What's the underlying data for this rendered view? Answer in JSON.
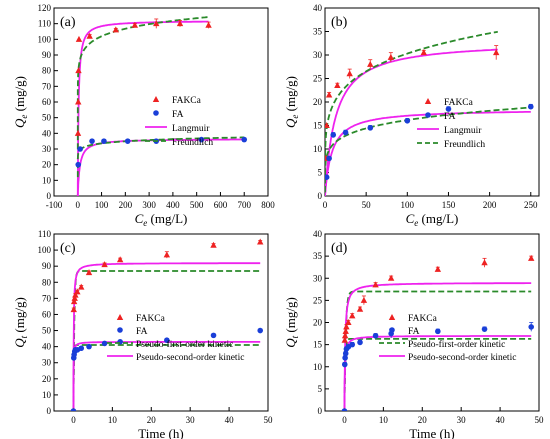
{
  "figure": {
    "legend_labels": {
      "fakca": "FAKCa",
      "fa": "FA",
      "langmuir": "Langmuir",
      "freundlich": "Freundlich",
      "pfo": "Pseudo-first-order kinetic",
      "pso": "Pseudo-second-order kinetic"
    },
    "colors": {
      "fakca": "#ee2222",
      "fa": "#1a3fd8",
      "model_a": "#ee22ee",
      "model_b": "#2a8a2a"
    }
  },
  "chart_data": [
    {
      "panel": "(a)",
      "type": "scatter",
      "xlabel": "Ce (mg/L)",
      "ylabel": "Qe (mg/g)",
      "xlim": [
        -100,
        800
      ],
      "ylim": [
        0,
        120
      ],
      "xticks": [
        -100,
        0,
        100,
        200,
        300,
        400,
        500,
        600,
        700,
        800
      ],
      "yticks": [
        0,
        10,
        20,
        30,
        40,
        50,
        60,
        70,
        80,
        90,
        100,
        110,
        120
      ],
      "legend": "right",
      "series": [
        {
          "name": "FAKCa",
          "marker": "triangle",
          "x": [
            1,
            2,
            3,
            5,
            50,
            160,
            240,
            330,
            430,
            550
          ],
          "y": [
            40,
            60,
            80,
            100,
            102,
            106,
            109,
            110,
            110,
            109
          ],
          "err": [
            0,
            0,
            0,
            0,
            1,
            1,
            1,
            3,
            2,
            2
          ]
        },
        {
          "name": "FA",
          "marker": "circle",
          "x": [
            2,
            10,
            60,
            110,
            210,
            330,
            520,
            700
          ],
          "y": [
            20,
            30,
            35,
            35,
            35,
            35,
            36,
            36
          ],
          "err": [
            0,
            1,
            1,
            1,
            1,
            1,
            1,
            1
          ]
        },
        {
          "name": "Langmuir",
          "line": "solid",
          "model": "langmuir",
          "target": "FAKCa",
          "qmax": 112,
          "k": 0.3,
          "xmax": 550
        },
        {
          "name": "Langmuir",
          "line": "solid",
          "model": "langmuir",
          "target": "FA",
          "qmax": 36.5,
          "k": 0.12,
          "xmax": 700,
          "legend": false
        },
        {
          "name": "Freundlich",
          "line": "dashed",
          "model": "freundlich",
          "target": "FAKCa",
          "kf": 75,
          "n": 15,
          "xmax": 550
        },
        {
          "name": "Freundlich",
          "line": "dashed",
          "model": "freundlich",
          "target": "FA",
          "kf": 26,
          "n": 18,
          "xmax": 700,
          "legend": false
        }
      ]
    },
    {
      "panel": "(b)",
      "type": "scatter",
      "xlabel": "Ce (mg/L)",
      "ylabel": "Qe (mg/g)",
      "xlim": [
        0,
        260
      ],
      "ylim": [
        0,
        40
      ],
      "xticks": [
        0,
        50,
        100,
        150,
        200,
        250
      ],
      "yticks": [
        0,
        5,
        10,
        15,
        20,
        25,
        30,
        35,
        40
      ],
      "legend": "right",
      "series": [
        {
          "name": "FAKCa",
          "marker": "triangle",
          "x": [
            1,
            2,
            5,
            15,
            30,
            55,
            80,
            120,
            208
          ],
          "y": [
            8,
            15,
            21.5,
            23.5,
            26,
            28,
            29.5,
            30.5,
            30.5
          ],
          "err": [
            0,
            0,
            0.5,
            0.5,
            1,
            1,
            1,
            0.5,
            1.5
          ]
        },
        {
          "name": "FA",
          "marker": "circle",
          "x": [
            2,
            5,
            10,
            25,
            55,
            100,
            150,
            250
          ],
          "y": [
            4,
            8,
            13,
            13.5,
            14.5,
            16,
            18.5,
            19
          ],
          "err": [
            0,
            0,
            0.5,
            0.5,
            0.5,
            0.5,
            0.5,
            0.5
          ]
        },
        {
          "name": "Langmuir",
          "line": "solid",
          "model": "langmuir",
          "target": "FAKCa",
          "qmax": 33,
          "k": 0.08,
          "xmax": 210
        },
        {
          "name": "Langmuir",
          "line": "solid",
          "model": "langmuir",
          "target": "FA",
          "qmax": 18.5,
          "k": 0.12,
          "xmax": 250,
          "legend": false
        },
        {
          "name": "Freundlich",
          "line": "dashed",
          "model": "freundlich",
          "target": "FAKCa",
          "kf": 12.5,
          "n": 5.2,
          "xmax": 210
        },
        {
          "name": "Freundlich",
          "line": "dashed",
          "model": "freundlich",
          "target": "FA",
          "kf": 7.5,
          "n": 6,
          "xmax": 250,
          "legend": false
        }
      ]
    },
    {
      "panel": "(c)",
      "type": "scatter",
      "xlabel": "Time (h)",
      "ylabel": "Qt (mg/g)",
      "xlim": [
        -5,
        50
      ],
      "ylim": [
        0,
        110
      ],
      "xticks": [
        0,
        10,
        20,
        30,
        40,
        50
      ],
      "yticks": [
        0,
        10,
        20,
        30,
        40,
        50,
        60,
        70,
        80,
        90,
        100,
        110
      ],
      "legend": "bottom-right",
      "series": [
        {
          "name": "FAKCa",
          "marker": "triangle",
          "x": [
            0,
            0.08,
            0.17,
            0.33,
            0.5,
            1,
            2,
            4,
            8,
            12,
            24,
            36,
            48
          ],
          "y": [
            0,
            63,
            68,
            70,
            72,
            74,
            77,
            86,
            91,
            94,
            97,
            103,
            105
          ],
          "err": [
            0,
            1,
            1,
            1,
            1,
            1,
            1,
            1,
            1,
            1,
            2,
            1,
            1
          ]
        },
        {
          "name": "FA",
          "marker": "circle",
          "x": [
            0,
            0.08,
            0.17,
            0.33,
            0.5,
            1,
            2,
            4,
            8,
            12,
            24,
            36,
            48
          ],
          "y": [
            0,
            33,
            35,
            37,
            38,
            38,
            39,
            40,
            42,
            43,
            44,
            47,
            50
          ],
          "err": [
            0,
            1,
            1,
            1,
            1,
            1,
            1,
            1,
            1,
            1,
            1,
            1,
            1
          ]
        },
        {
          "name": "Pseudo-first-order kinetic",
          "line": "dashed",
          "model": "pfo",
          "target": "FAKCa",
          "qe": 87,
          "k": 4.5,
          "xmax": 48
        },
        {
          "name": "Pseudo-first-order kinetic",
          "line": "dashed",
          "model": "pfo",
          "target": "FA",
          "qe": 41,
          "k": 9,
          "xmax": 48,
          "legend": false
        },
        {
          "name": "Pseudo-second-order kinetic",
          "line": "solid",
          "model": "pso",
          "target": "FAKCa",
          "qe": 92,
          "k": 0.15,
          "xmax": 48
        },
        {
          "name": "Pseudo-second-order kinetic",
          "line": "solid",
          "model": "pso",
          "target": "FA",
          "qe": 43,
          "k": 0.6,
          "xmax": 48,
          "legend": false
        }
      ]
    },
    {
      "panel": "(d)",
      "type": "scatter",
      "xlabel": "Time (h)",
      "ylabel": "Qt (mg/g)",
      "xlim": [
        -5,
        50
      ],
      "ylim": [
        0,
        40
      ],
      "xticks": [
        0,
        10,
        20,
        30,
        40,
        50
      ],
      "yticks": [
        0,
        5,
        10,
        15,
        20,
        25,
        30,
        35,
        40
      ],
      "legend": "bottom-right",
      "series": [
        {
          "name": "FAKCa",
          "marker": "triangle",
          "x": [
            0,
            0.08,
            0.17,
            0.33,
            0.5,
            1,
            2,
            4,
            5,
            8,
            12,
            24,
            36,
            48
          ],
          "y": [
            0,
            16,
            17,
            18,
            19,
            20,
            21.5,
            23,
            25,
            28.5,
            30,
            32,
            33.5,
            34.5
          ],
          "err": [
            0,
            0.5,
            0.5,
            0.5,
            0.5,
            0.5,
            0.5,
            0.5,
            1,
            0.5,
            0.5,
            0.5,
            1,
            0.5
          ]
        },
        {
          "name": "FA",
          "marker": "circle",
          "x": [
            0,
            0.08,
            0.17,
            0.33,
            0.5,
            1,
            2,
            4,
            8,
            12,
            24,
            36,
            48
          ],
          "y": [
            0,
            10.5,
            12,
            13,
            14,
            14.5,
            15,
            15.5,
            17,
            17.5,
            18,
            18.5,
            19
          ],
          "err": [
            0,
            0.5,
            0.5,
            0.5,
            0.5,
            0.5,
            0.5,
            0.5,
            0.5,
            1,
            0.5,
            0.5,
            1
          ]
        },
        {
          "name": "Pseudo-first-order kinetic",
          "line": "dashed",
          "model": "pfo",
          "target": "FAKCa",
          "qe": 27,
          "k": 3,
          "xmax": 48
        },
        {
          "name": "Pseudo-first-order kinetic",
          "line": "dashed",
          "model": "pfo",
          "target": "FA",
          "qe": 16.3,
          "k": 5,
          "xmax": 48,
          "legend": false
        },
        {
          "name": "Pseudo-second-order kinetic",
          "line": "solid",
          "model": "pso",
          "target": "FAKCa",
          "qe": 29,
          "k": 0.2,
          "xmax": 48
        },
        {
          "name": "Pseudo-second-order kinetic",
          "line": "solid",
          "model": "pso",
          "target": "FA",
          "qe": 17,
          "k": 0.5,
          "xmax": 48,
          "legend": false
        }
      ]
    }
  ]
}
